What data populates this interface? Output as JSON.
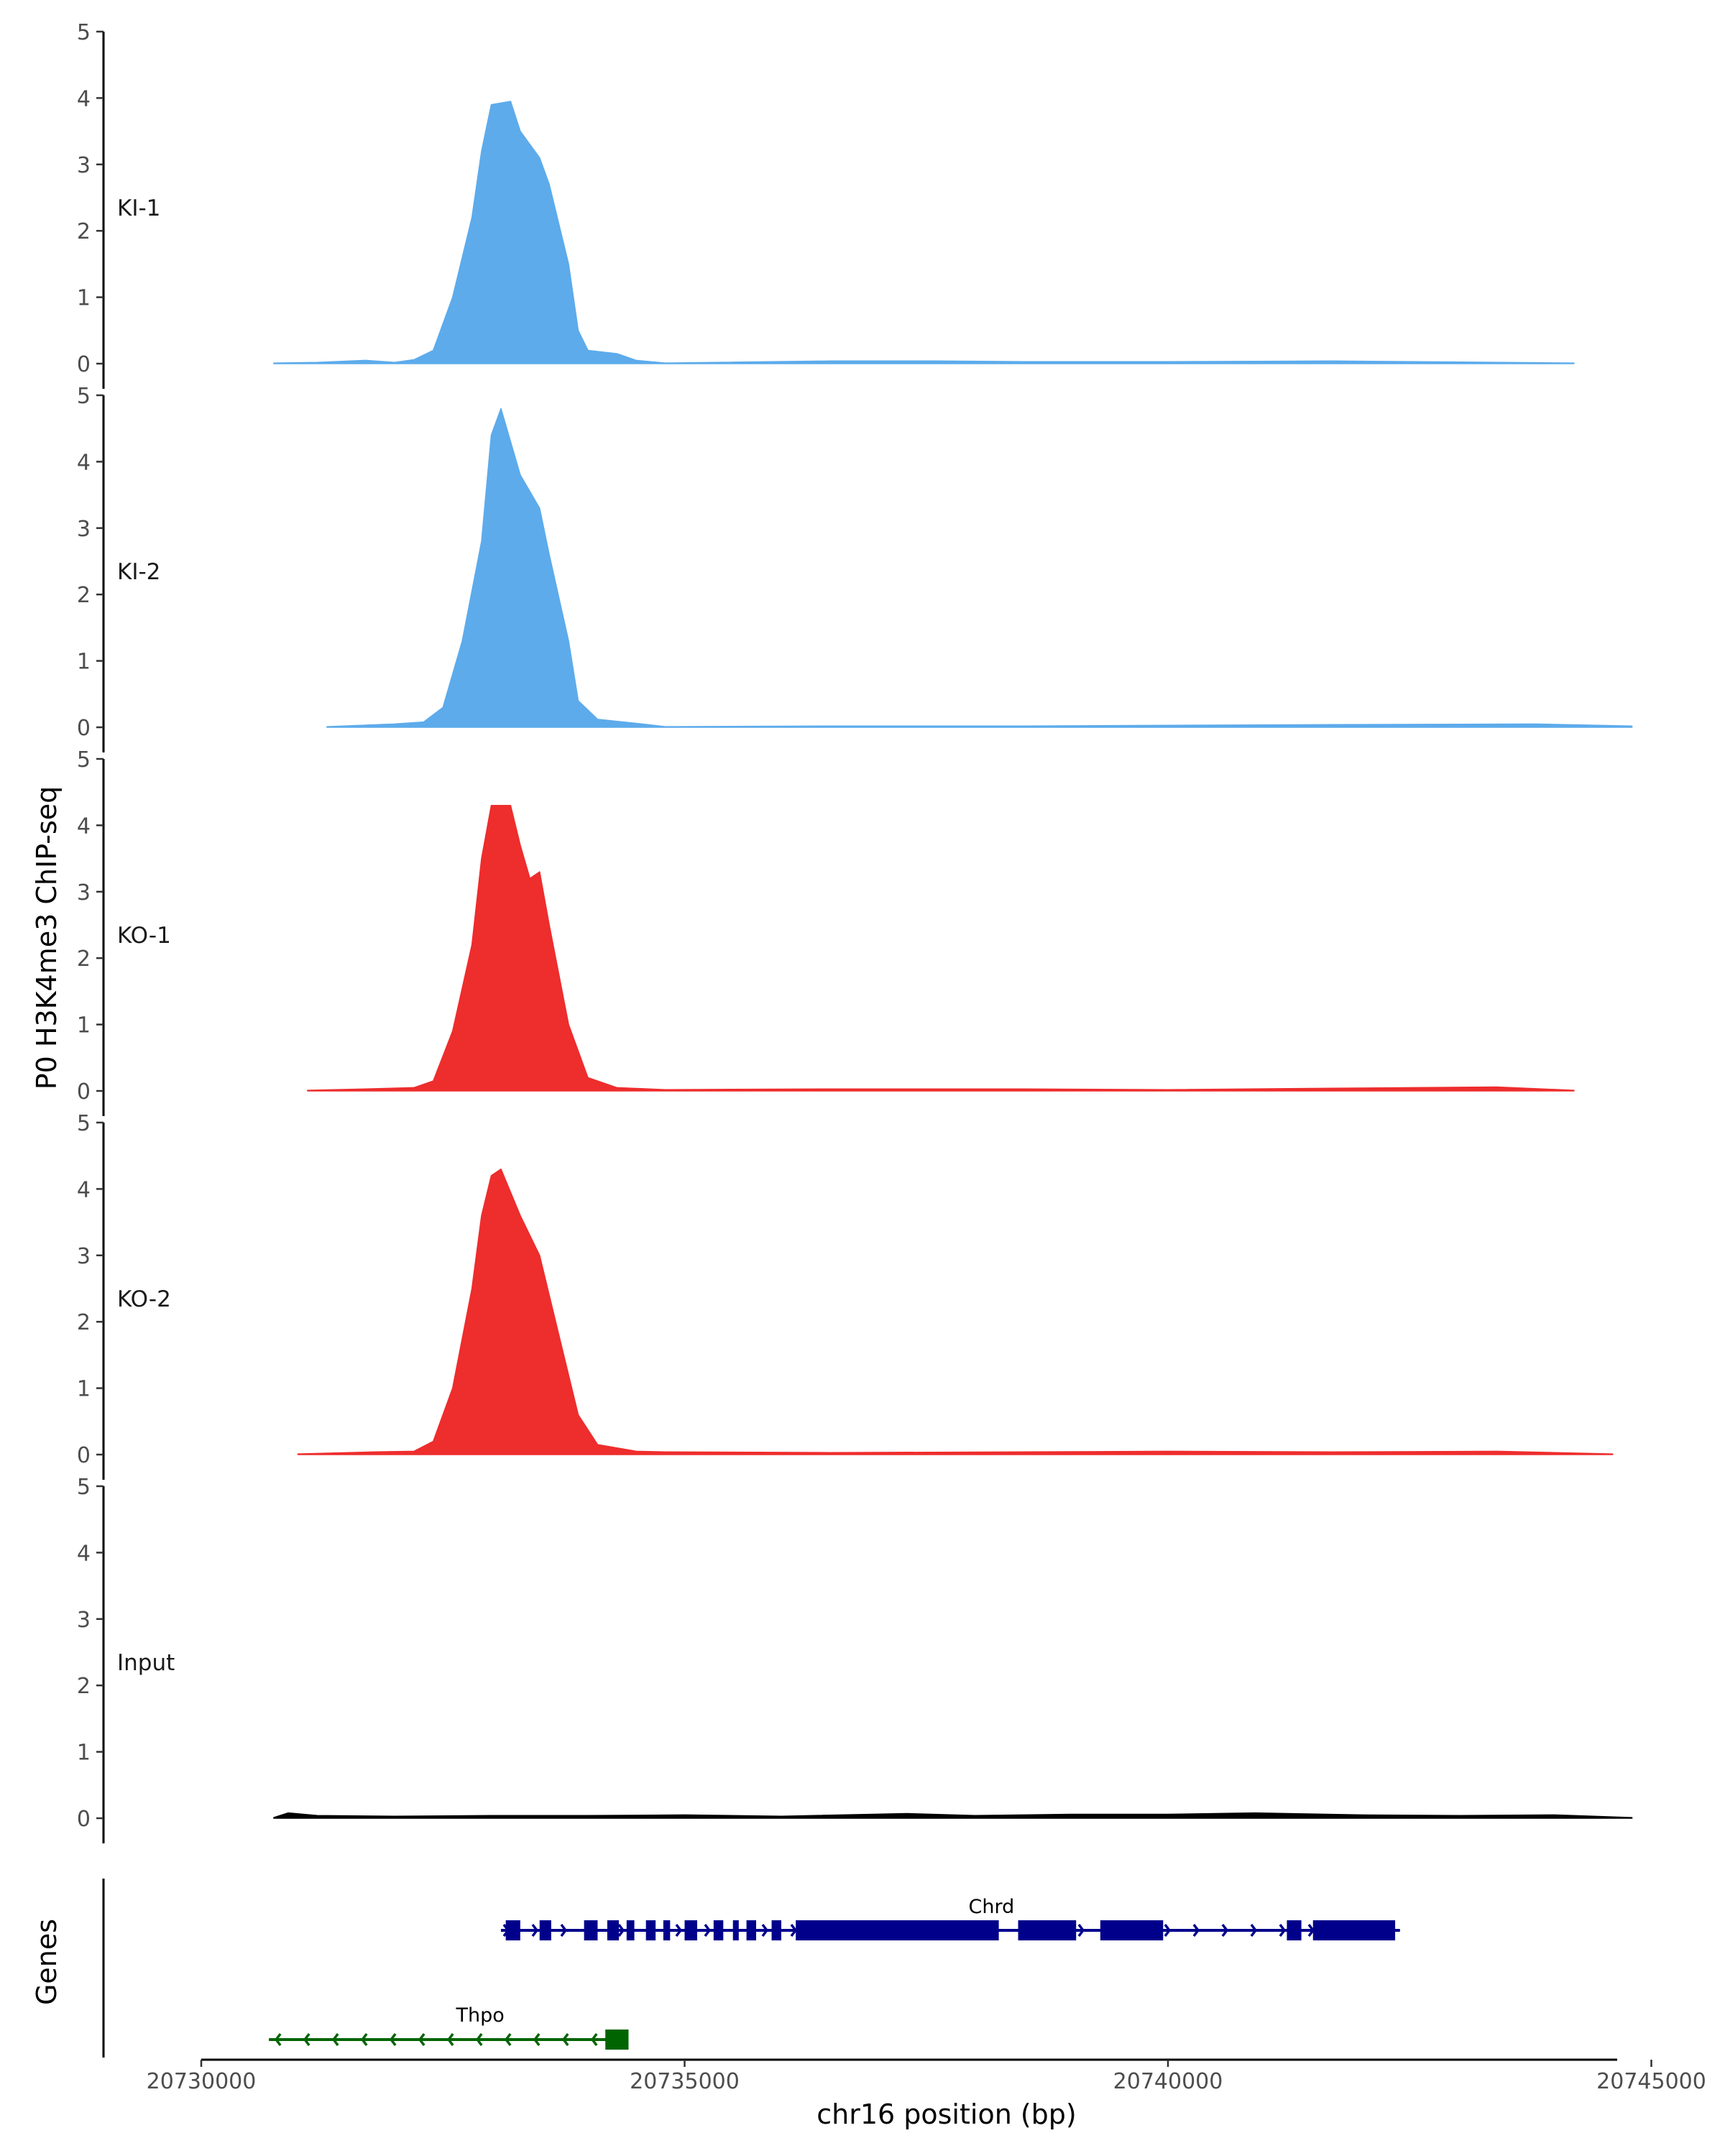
{
  "chart_data": {
    "type": "area",
    "ylabel": "P0 H3K4me3 ChIP-seq",
    "xlabel": "chr16 position (bp)",
    "ylim": [
      0,
      5
    ],
    "yticks": [
      "0",
      "1",
      "2",
      "3",
      "4",
      "5"
    ],
    "xlim": [
      20729750,
      20745400
    ],
    "xticks": [
      {
        "value": 20730000,
        "label": "20730000"
      },
      {
        "value": 20735000,
        "label": "20735000"
      },
      {
        "value": 20740000,
        "label": "20740000"
      },
      {
        "value": 20745000,
        "label": "20745000"
      }
    ],
    "tracks": [
      {
        "name": "KI-1",
        "color": "#5dabeb",
        "points": [
          [
            20730750,
            0.01
          ],
          [
            20731200,
            0.02
          ],
          [
            20731700,
            0.05
          ],
          [
            20732000,
            0.02
          ],
          [
            20732200,
            0.06
          ],
          [
            20732400,
            0.2
          ],
          [
            20732600,
            1.0
          ],
          [
            20732800,
            2.2
          ],
          [
            20732900,
            3.2
          ],
          [
            20733000,
            3.9
          ],
          [
            20733200,
            3.95
          ],
          [
            20733300,
            3.5
          ],
          [
            20733500,
            3.1
          ],
          [
            20733600,
            2.7
          ],
          [
            20733800,
            1.5
          ],
          [
            20733900,
            0.5
          ],
          [
            20734000,
            0.2
          ],
          [
            20734300,
            0.15
          ],
          [
            20734500,
            0.05
          ],
          [
            20734800,
            0.01
          ],
          [
            20736500,
            0.04
          ],
          [
            20737600,
            0.04
          ],
          [
            20738500,
            0.03
          ],
          [
            20740000,
            0.03
          ],
          [
            20741700,
            0.04
          ],
          [
            20744200,
            0.01
          ]
        ]
      },
      {
        "name": "KI-2",
        "color": "#5dabeb",
        "points": [
          [
            20731300,
            0.01
          ],
          [
            20732000,
            0.05
          ],
          [
            20732300,
            0.08
          ],
          [
            20732500,
            0.3
          ],
          [
            20732700,
            1.3
          ],
          [
            20732900,
            2.8
          ],
          [
            20733000,
            4.4
          ],
          [
            20733100,
            4.8
          ],
          [
            20733300,
            3.8
          ],
          [
            20733500,
            3.3
          ],
          [
            20733600,
            2.6
          ],
          [
            20733800,
            1.3
          ],
          [
            20733900,
            0.4
          ],
          [
            20734100,
            0.12
          ],
          [
            20734500,
            0.06
          ],
          [
            20734800,
            0.01
          ],
          [
            20736500,
            0.02
          ],
          [
            20738500,
            0.02
          ],
          [
            20740000,
            0.03
          ],
          [
            20741700,
            0.04
          ],
          [
            20743800,
            0.05
          ],
          [
            20744800,
            0.02
          ]
        ]
      },
      {
        "name": "KO-1",
        "color": "#ee2d2d",
        "points": [
          [
            20731100,
            0.01
          ],
          [
            20731700,
            0.03
          ],
          [
            20732200,
            0.05
          ],
          [
            20732400,
            0.15
          ],
          [
            20732600,
            0.9
          ],
          [
            20732800,
            2.2
          ],
          [
            20732900,
            3.5
          ],
          [
            20733000,
            4.3
          ],
          [
            20733200,
            4.3
          ],
          [
            20733300,
            3.7
          ],
          [
            20733400,
            3.2
          ],
          [
            20733500,
            3.3
          ],
          [
            20733600,
            2.5
          ],
          [
            20733800,
            1.0
          ],
          [
            20734000,
            0.2
          ],
          [
            20734300,
            0.05
          ],
          [
            20734800,
            0.02
          ],
          [
            20736500,
            0.03
          ],
          [
            20738500,
            0.03
          ],
          [
            20740000,
            0.02
          ],
          [
            20741700,
            0.04
          ],
          [
            20743400,
            0.06
          ],
          [
            20744200,
            0.01
          ]
        ]
      },
      {
        "name": "KO-2",
        "color": "#ee2d2d",
        "points": [
          [
            20731000,
            0.01
          ],
          [
            20731800,
            0.04
          ],
          [
            20732200,
            0.05
          ],
          [
            20732400,
            0.2
          ],
          [
            20732600,
            1.0
          ],
          [
            20732800,
            2.5
          ],
          [
            20732900,
            3.6
          ],
          [
            20733000,
            4.2
          ],
          [
            20733100,
            4.3
          ],
          [
            20733300,
            3.6
          ],
          [
            20733500,
            3.0
          ],
          [
            20733700,
            1.8
          ],
          [
            20733900,
            0.6
          ],
          [
            20734100,
            0.15
          ],
          [
            20734500,
            0.05
          ],
          [
            20734800,
            0.04
          ],
          [
            20736500,
            0.03
          ],
          [
            20738500,
            0.04
          ],
          [
            20740000,
            0.05
          ],
          [
            20741700,
            0.04
          ],
          [
            20743400,
            0.05
          ],
          [
            20744600,
            0.01
          ]
        ]
      },
      {
        "name": "Input",
        "color": "#000000",
        "points": [
          [
            20730750,
            0.01
          ],
          [
            20730900,
            0.08
          ],
          [
            20731200,
            0.04
          ],
          [
            20732000,
            0.03
          ],
          [
            20733000,
            0.04
          ],
          [
            20734000,
            0.04
          ],
          [
            20735000,
            0.05
          ],
          [
            20736000,
            0.03
          ],
          [
            20737300,
            0.07
          ],
          [
            20738000,
            0.04
          ],
          [
            20739000,
            0.06
          ],
          [
            20740000,
            0.06
          ],
          [
            20740900,
            0.08
          ],
          [
            20742000,
            0.05
          ],
          [
            20743000,
            0.04
          ],
          [
            20744000,
            0.05
          ],
          [
            20744800,
            0.01
          ]
        ]
      }
    ],
    "genes_label": "Genes",
    "genes": [
      {
        "name": "Chrd",
        "color": "#00008b",
        "strand": "+",
        "start": 20733100,
        "end": 20742400,
        "exons": [
          [
            20733150,
            20733300
          ],
          [
            20733500,
            20733620
          ],
          [
            20733960,
            20734100
          ],
          [
            20734200,
            20734320
          ],
          [
            20734400,
            20734480
          ],
          [
            20734600,
            20734700
          ],
          [
            20734780,
            20734850
          ],
          [
            20735000,
            20735130
          ],
          [
            20735300,
            20735400
          ],
          [
            20735500,
            20735560
          ],
          [
            20735640,
            20735740
          ],
          [
            20735900,
            20736000
          ],
          [
            20736150,
            20738250
          ],
          [
            20738450,
            20739050
          ],
          [
            20739300,
            20739950
          ],
          [
            20741230,
            20741380
          ],
          [
            20741500,
            20742350
          ]
        ]
      },
      {
        "name": "Thpo",
        "color": "#006400",
        "strand": "-",
        "start": 20730700,
        "end": 20734400,
        "exons": [
          [
            20734180,
            20734420
          ]
        ]
      }
    ]
  }
}
